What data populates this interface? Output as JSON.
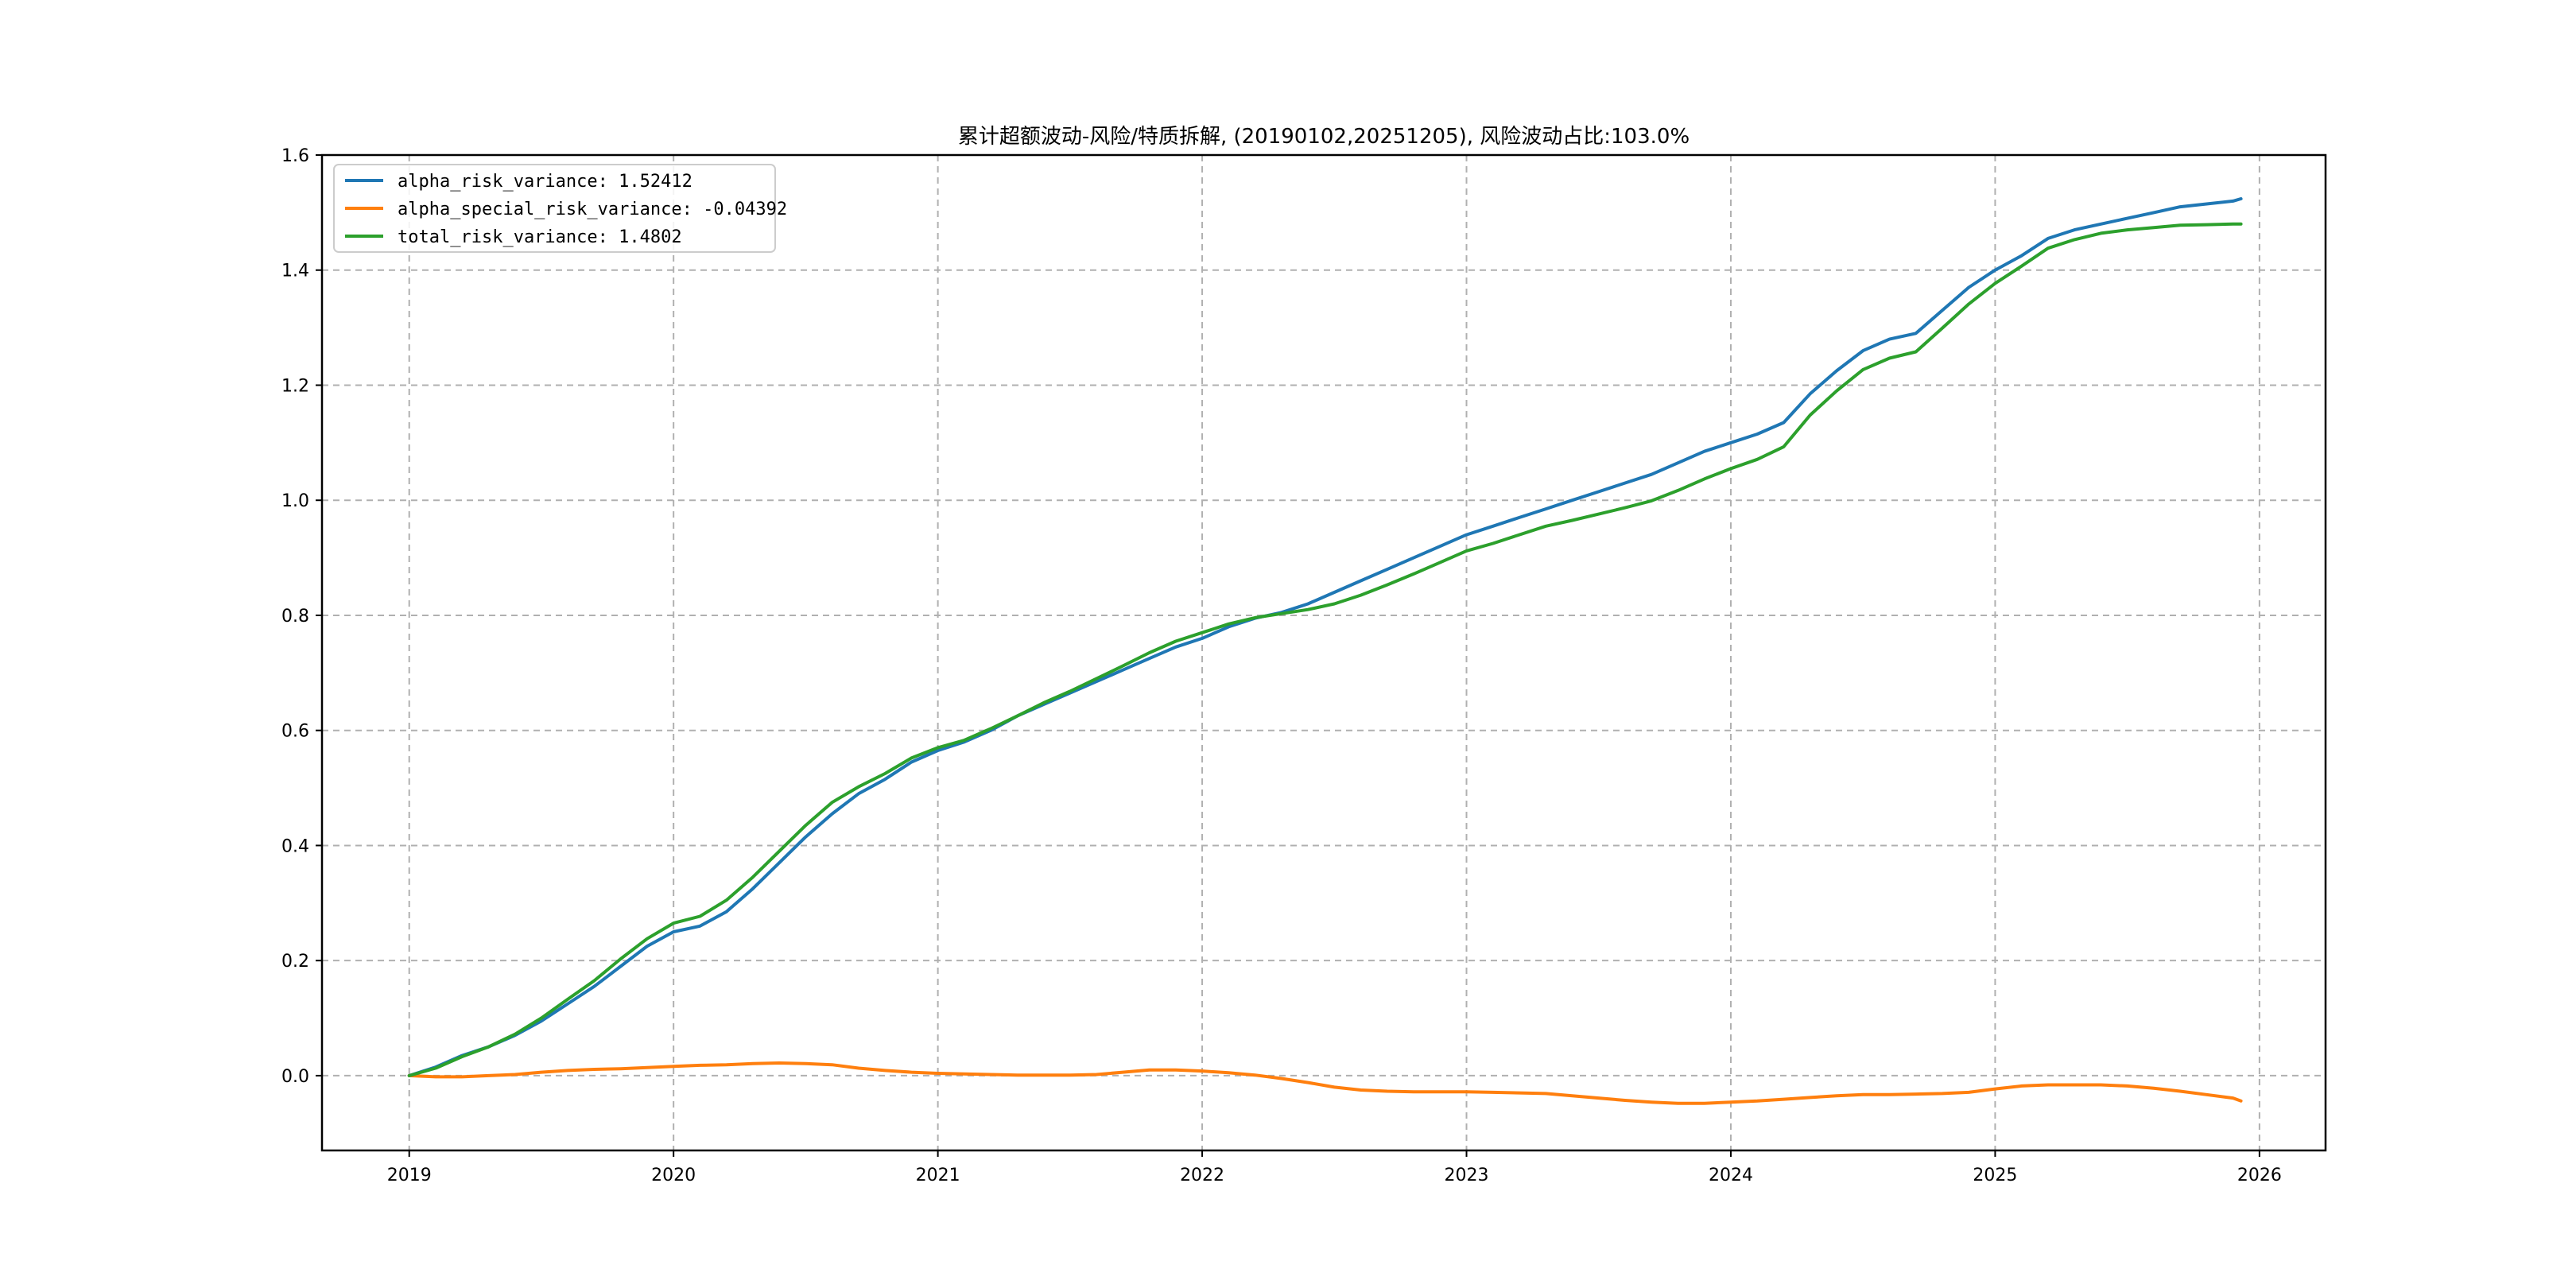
{
  "chart_data": {
    "type": "line",
    "title": "累计超额波动-风险/特质拆解, (20190102,20251205), 风险波动占比:103.0%",
    "xlabel": "",
    "ylabel": "",
    "xlim": [
      2018.67,
      2026.25
    ],
    "ylim": [
      -0.13,
      1.6
    ],
    "x_ticks": [
      2019,
      2020,
      2021,
      2022,
      2023,
      2024,
      2025,
      2026
    ],
    "x_tick_labels": [
      "2019",
      "2020",
      "2021",
      "2022",
      "2023",
      "2024",
      "2025",
      "2026"
    ],
    "y_ticks": [
      0.0,
      0.2,
      0.4,
      0.6,
      0.8,
      1.0,
      1.2,
      1.4,
      1.6
    ],
    "y_tick_labels": [
      "0.0",
      "0.2",
      "0.4",
      "0.6",
      "0.8",
      "1.0",
      "1.2",
      "1.4",
      "1.6"
    ],
    "grid": true,
    "legend_position": "upper-left",
    "series": [
      {
        "name": "alpha_risk_variance",
        "legend_label": "alpha_risk_variance: 1.52412",
        "color": "#1f77b4",
        "x": [
          2019.0,
          2019.1,
          2019.2,
          2019.3,
          2019.4,
          2019.5,
          2019.6,
          2019.7,
          2019.8,
          2019.9,
          2020.0,
          2020.1,
          2020.2,
          2020.3,
          2020.4,
          2020.5,
          2020.6,
          2020.7,
          2020.8,
          2020.9,
          2021.0,
          2021.1,
          2021.2,
          2021.3,
          2021.4,
          2021.5,
          2021.6,
          2021.7,
          2021.8,
          2021.9,
          2022.0,
          2022.1,
          2022.2,
          2022.3,
          2022.4,
          2022.5,
          2022.6,
          2022.7,
          2022.8,
          2022.9,
          2023.0,
          2023.1,
          2023.2,
          2023.3,
          2023.4,
          2023.5,
          2023.6,
          2023.7,
          2023.8,
          2023.9,
          2024.0,
          2024.1,
          2024.2,
          2024.3,
          2024.4,
          2024.5,
          2024.6,
          2024.7,
          2024.8,
          2024.9,
          2025.0,
          2025.1,
          2025.2,
          2025.3,
          2025.4,
          2025.5,
          2025.6,
          2025.7,
          2025.8,
          2025.9,
          2025.93
        ],
        "values": [
          0.0,
          0.015,
          0.035,
          0.05,
          0.07,
          0.095,
          0.125,
          0.155,
          0.19,
          0.225,
          0.25,
          0.26,
          0.285,
          0.325,
          0.37,
          0.415,
          0.455,
          0.49,
          0.515,
          0.545,
          0.565,
          0.58,
          0.6,
          0.625,
          0.645,
          0.665,
          0.685,
          0.705,
          0.725,
          0.745,
          0.76,
          0.78,
          0.795,
          0.805,
          0.82,
          0.84,
          0.86,
          0.88,
          0.9,
          0.92,
          0.94,
          0.955,
          0.97,
          0.985,
          1.0,
          1.015,
          1.03,
          1.045,
          1.065,
          1.085,
          1.1,
          1.115,
          1.135,
          1.185,
          1.225,
          1.26,
          1.28,
          1.29,
          1.33,
          1.37,
          1.4,
          1.425,
          1.455,
          1.47,
          1.48,
          1.49,
          1.5,
          1.51,
          1.515,
          1.52,
          1.524
        ]
      },
      {
        "name": "alpha_special_risk_variance",
        "legend_label": "alpha_special_risk_variance: -0.04392",
        "color": "#ff7f0e",
        "x": [
          2019.0,
          2019.1,
          2019.2,
          2019.3,
          2019.4,
          2019.5,
          2019.6,
          2019.7,
          2019.8,
          2019.9,
          2020.0,
          2020.1,
          2020.2,
          2020.3,
          2020.4,
          2020.5,
          2020.6,
          2020.7,
          2020.8,
          2020.9,
          2021.0,
          2021.1,
          2021.2,
          2021.3,
          2021.4,
          2021.5,
          2021.6,
          2021.7,
          2021.8,
          2021.9,
          2022.0,
          2022.1,
          2022.2,
          2022.3,
          2022.4,
          2022.5,
          2022.6,
          2022.7,
          2022.8,
          2022.9,
          2023.0,
          2023.1,
          2023.2,
          2023.3,
          2023.4,
          2023.5,
          2023.6,
          2023.7,
          2023.8,
          2023.9,
          2024.0,
          2024.1,
          2024.2,
          2024.3,
          2024.4,
          2024.5,
          2024.6,
          2024.7,
          2024.8,
          2024.9,
          2025.0,
          2025.1,
          2025.2,
          2025.3,
          2025.4,
          2025.5,
          2025.6,
          2025.7,
          2025.8,
          2025.9,
          2025.93
        ],
        "values": [
          0.0,
          -0.002,
          -0.002,
          0.0,
          0.002,
          0.006,
          0.009,
          0.011,
          0.012,
          0.014,
          0.016,
          0.018,
          0.019,
          0.021,
          0.022,
          0.021,
          0.019,
          0.013,
          0.009,
          0.006,
          0.004,
          0.003,
          0.002,
          0.001,
          0.001,
          0.001,
          0.002,
          0.006,
          0.01,
          0.01,
          0.008,
          0.005,
          0.001,
          -0.005,
          -0.012,
          -0.02,
          -0.025,
          -0.027,
          -0.028,
          -0.028,
          -0.028,
          -0.029,
          -0.03,
          -0.031,
          -0.035,
          -0.039,
          -0.043,
          -0.046,
          -0.048,
          -0.048,
          -0.046,
          -0.044,
          -0.041,
          -0.038,
          -0.035,
          -0.033,
          -0.033,
          -0.032,
          -0.031,
          -0.029,
          -0.023,
          -0.018,
          -0.016,
          -0.016,
          -0.016,
          -0.018,
          -0.022,
          -0.027,
          -0.033,
          -0.039,
          -0.0439
        ]
      },
      {
        "name": "total_risk_variance",
        "legend_label": "total_risk_variance: 1.4802",
        "color": "#2ca02c",
        "x": [
          2019.0,
          2019.1,
          2019.2,
          2019.3,
          2019.4,
          2019.5,
          2019.6,
          2019.7,
          2019.8,
          2019.9,
          2020.0,
          2020.1,
          2020.2,
          2020.3,
          2020.4,
          2020.5,
          2020.6,
          2020.7,
          2020.8,
          2020.9,
          2021.0,
          2021.1,
          2021.2,
          2021.3,
          2021.4,
          2021.5,
          2021.6,
          2021.7,
          2021.8,
          2021.9,
          2022.0,
          2022.1,
          2022.2,
          2022.3,
          2022.4,
          2022.5,
          2022.6,
          2022.7,
          2022.8,
          2022.9,
          2023.0,
          2023.1,
          2023.2,
          2023.3,
          2023.4,
          2023.5,
          2023.6,
          2023.7,
          2023.8,
          2023.9,
          2024.0,
          2024.1,
          2024.2,
          2024.3,
          2024.4,
          2024.5,
          2024.6,
          2024.7,
          2024.8,
          2024.9,
          2025.0,
          2025.1,
          2025.2,
          2025.3,
          2025.4,
          2025.5,
          2025.6,
          2025.7,
          2025.8,
          2025.9,
          2025.93
        ],
        "values": [
          0.0,
          0.013,
          0.033,
          0.05,
          0.072,
          0.1,
          0.133,
          0.165,
          0.203,
          0.238,
          0.265,
          0.277,
          0.305,
          0.345,
          0.39,
          0.435,
          0.475,
          0.502,
          0.525,
          0.552,
          0.57,
          0.583,
          0.603,
          0.625,
          0.648,
          0.668,
          0.69,
          0.712,
          0.735,
          0.755,
          0.77,
          0.785,
          0.796,
          0.803,
          0.81,
          0.82,
          0.835,
          0.853,
          0.872,
          0.892,
          0.912,
          0.925,
          0.94,
          0.955,
          0.965,
          0.976,
          0.987,
          0.999,
          1.017,
          1.037,
          1.055,
          1.071,
          1.093,
          1.148,
          1.19,
          1.227,
          1.247,
          1.258,
          1.299,
          1.341,
          1.377,
          1.407,
          1.438,
          1.453,
          1.464,
          1.47,
          1.474,
          1.478,
          1.479,
          1.48,
          1.4802
        ]
      }
    ]
  }
}
